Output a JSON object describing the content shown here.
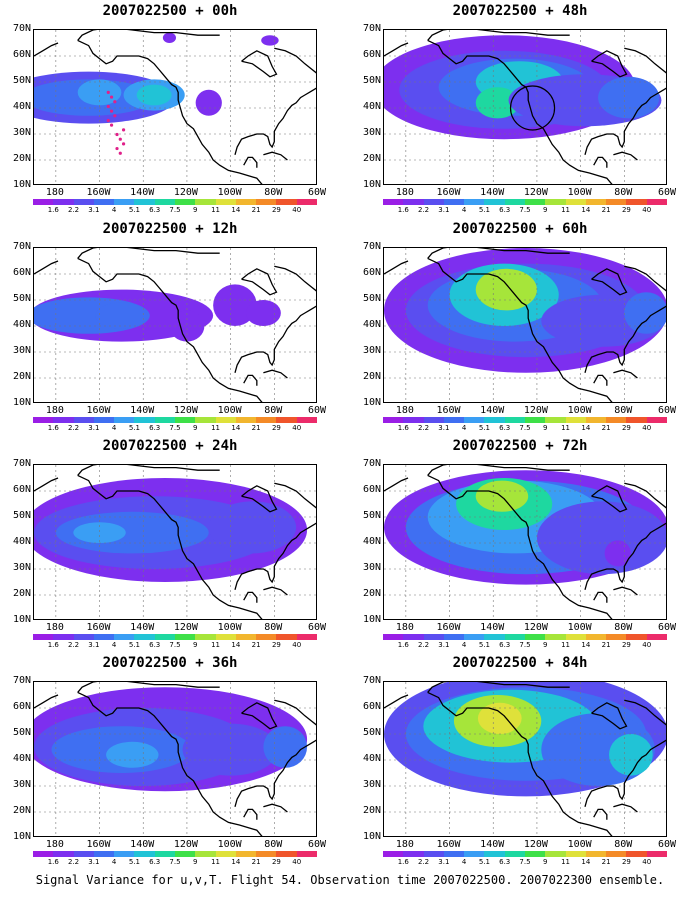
{
  "caption": "Signal Variance for u,v,T. Flight 54. Observation time 2007022500. 2007022300 ensemble.",
  "chart_data": {
    "type": "heatmap",
    "y_ticks": [
      "70N",
      "60N",
      "50N",
      "40N",
      "30N",
      "20N",
      "10N"
    ],
    "x_ticks": [
      "180",
      "160W",
      "140W",
      "120W",
      "100W",
      "80W",
      "60W"
    ],
    "colorbar": {
      "levels": [
        "1.6",
        "2.2",
        "3.1",
        "4",
        "5.1",
        "6.3",
        "7.5",
        "9",
        "11",
        "14",
        "21",
        "29",
        "40"
      ],
      "colors": [
        "#9a1ee6",
        "#7d2fef",
        "#5a4ef0",
        "#3f6ff2",
        "#3a9ef4",
        "#21c3d6",
        "#1ed8a0",
        "#3ee048",
        "#a6e53a",
        "#dfe13a",
        "#f2b62e",
        "#f48a27",
        "#f0552b",
        "#ec2b6a"
      ]
    },
    "panels": [
      {
        "title": "2007022500 + 00h"
      },
      {
        "title": "2007022500 + 48h"
      },
      {
        "title": "2007022500 + 12h"
      },
      {
        "title": "2007022500 + 60h"
      },
      {
        "title": "2007022500 + 24h"
      },
      {
        "title": "2007022500 + 72h"
      },
      {
        "title": "2007022500 + 36h"
      },
      {
        "title": "2007022500 + 84h"
      }
    ]
  }
}
